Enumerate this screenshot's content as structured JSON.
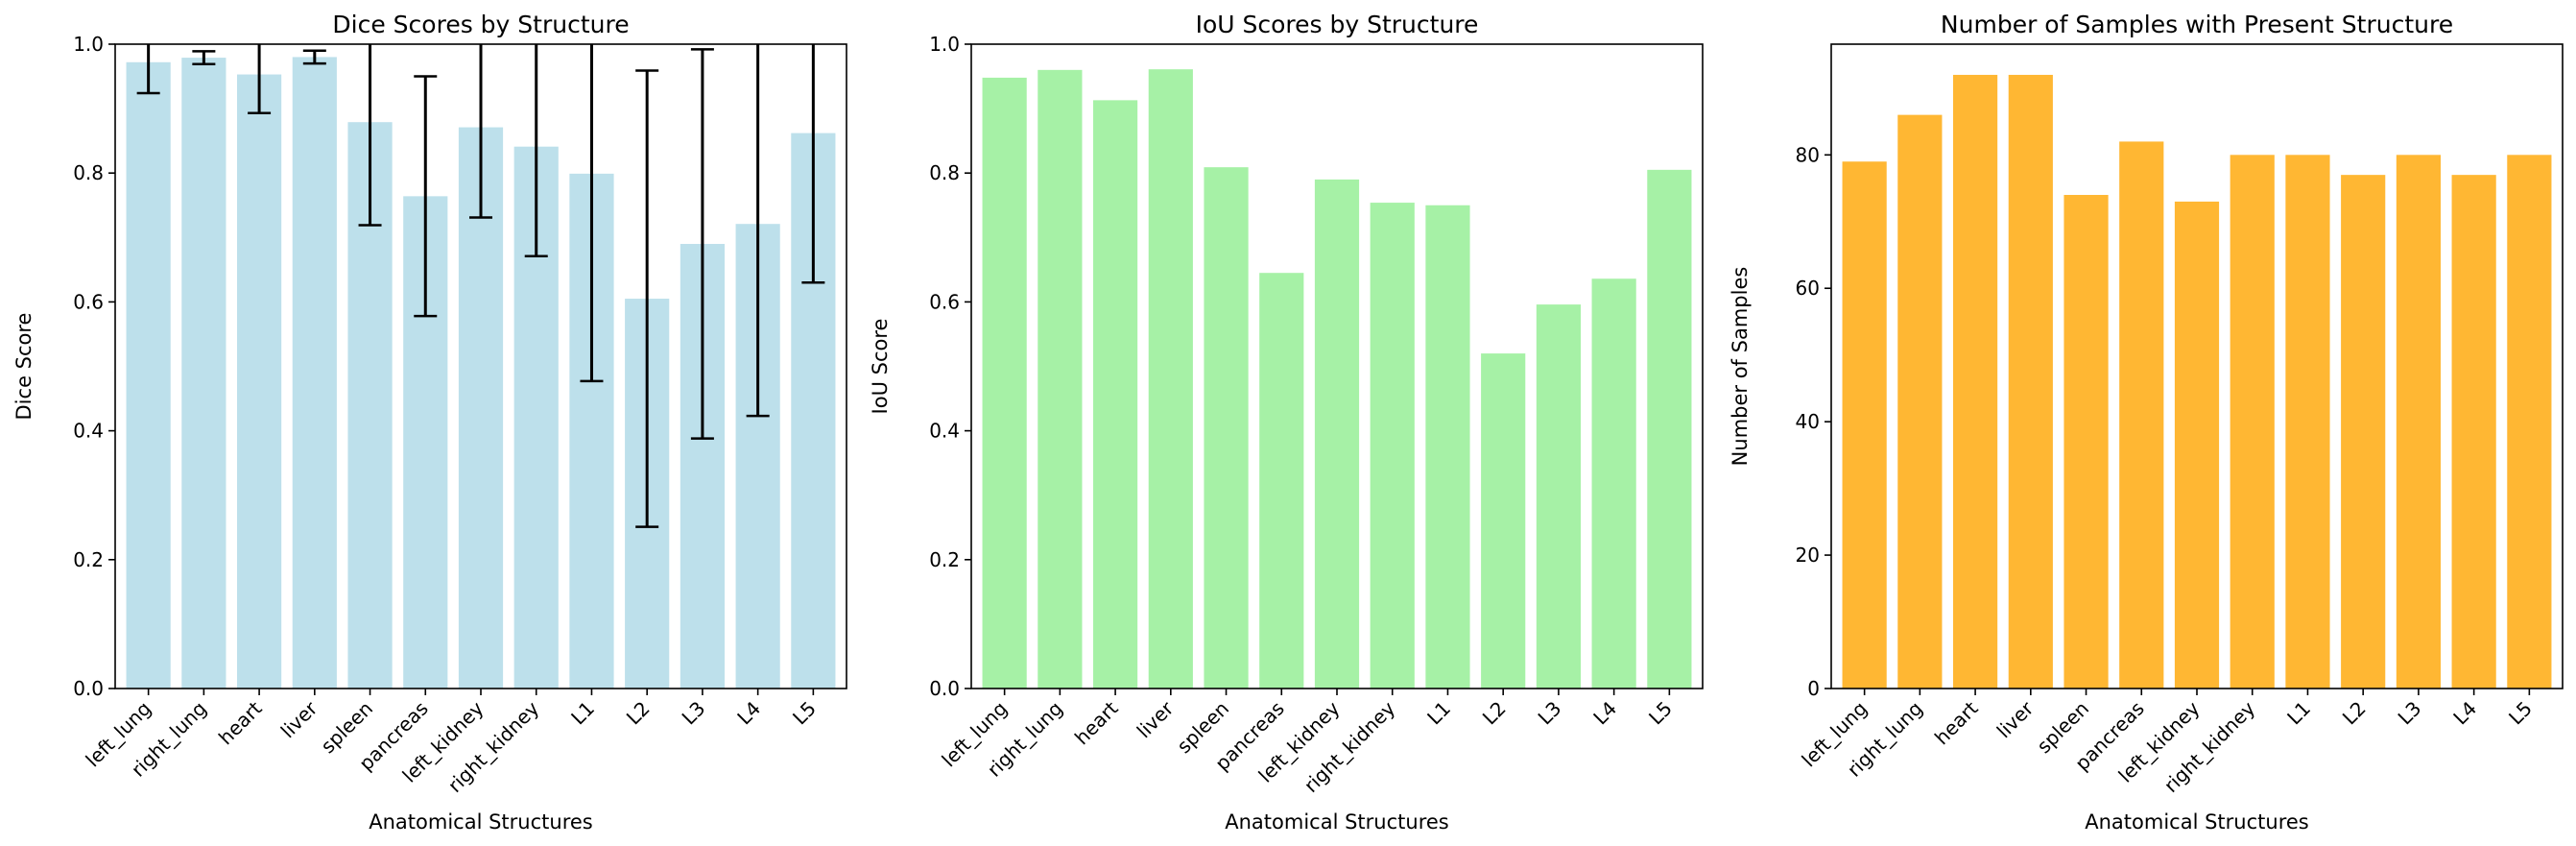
{
  "chart_data": [
    {
      "type": "bar",
      "title": "Dice Scores by Structure",
      "xlabel": "Anatomical Structures",
      "ylabel": "Dice Score",
      "ylim": [
        0,
        1.0
      ],
      "yticks": [
        0.0,
        0.2,
        0.4,
        0.6,
        0.8,
        1.0
      ],
      "ytick_labels": [
        "0.0",
        "0.2",
        "0.4",
        "0.6",
        "0.8",
        "1.0"
      ],
      "categories": [
        "left_lung",
        "right_lung",
        "heart",
        "liver",
        "spleen",
        "pancreas",
        "left_kidney",
        "right_kidney",
        "L1",
        "L2",
        "L3",
        "L4",
        "L5"
      ],
      "values": [
        0.972,
        0.979,
        0.953,
        0.98,
        0.879,
        0.764,
        0.871,
        0.841,
        0.799,
        0.605,
        0.69,
        0.721,
        0.862
      ],
      "error": [
        0.048,
        0.01,
        0.06,
        0.01,
        0.16,
        0.186,
        0.14,
        0.17,
        0.322,
        0.354,
        0.302,
        0.298,
        0.232
      ],
      "color": "#add8e6"
    },
    {
      "type": "bar",
      "title": "IoU Scores by Structure",
      "xlabel": "Anatomical Structures",
      "ylabel": "IoU Score",
      "ylim": [
        0,
        1.0
      ],
      "yticks": [
        0.0,
        0.2,
        0.4,
        0.6,
        0.8,
        1.0
      ],
      "ytick_labels": [
        "0.0",
        "0.2",
        "0.4",
        "0.6",
        "0.8",
        "1.0"
      ],
      "categories": [
        "left_lung",
        "right_lung",
        "heart",
        "liver",
        "spleen",
        "pancreas",
        "left_kidney",
        "right_kidney",
        "L1",
        "L2",
        "L3",
        "L4",
        "L5"
      ],
      "values": [
        0.948,
        0.96,
        0.913,
        0.961,
        0.809,
        0.645,
        0.79,
        0.754,
        0.75,
        0.52,
        0.596,
        0.636,
        0.805
      ],
      "color": "#90ee90"
    },
    {
      "type": "bar",
      "title": "Number of Samples with Present Structure",
      "xlabel": "Anatomical Structures",
      "ylabel": "Number of Samples",
      "ylim": [
        0,
        96.6
      ],
      "yticks": [
        0,
        20,
        40,
        60,
        80
      ],
      "ytick_labels": [
        "0",
        "20",
        "40",
        "60",
        "80"
      ],
      "categories": [
        "left_lung",
        "right_lung",
        "heart",
        "liver",
        "spleen",
        "pancreas",
        "left_kidney",
        "right_kidney",
        "L1",
        "L2",
        "L3",
        "L4",
        "L5"
      ],
      "values": [
        79,
        86,
        92,
        92,
        74,
        82,
        73,
        80,
        80,
        77,
        80,
        77,
        80
      ],
      "color": "#ffa500"
    }
  ]
}
